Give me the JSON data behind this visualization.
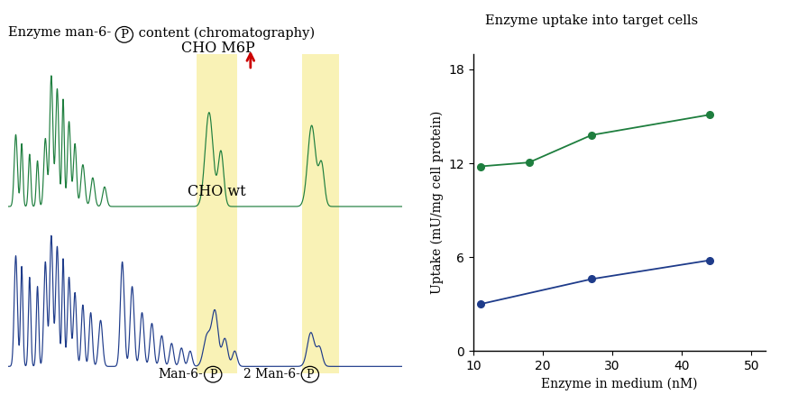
{
  "title_left": "Enzyme man-6-",
  "title_left_p": "P",
  "title_left_rest": " content (chromatography)",
  "title_right": "Enzyme uptake into target cells",
  "left_label_cho_m6p": "CHO M6P",
  "left_label_cho_wt": "CHO wt",
  "bottom_label_1": "Man-6-",
  "bottom_label_1_p": "P",
  "bottom_label_2": "2 Man-6-",
  "bottom_label_2_p": "P",
  "ylabel_right": "Uptake (mU/mg cell protein)",
  "xlabel_right": "Enzyme in medium (nM)",
  "green_color": "#1e7e3e",
  "blue_color": "#1e3b8a",
  "red_color": "#cc0000",
  "highlight_color": "#f5e87a",
  "highlight_alpha": 0.55,
  "green_x": [
    11,
    18,
    27,
    44
  ],
  "green_y": [
    11.8,
    12.05,
    13.8,
    15.1
  ],
  "blue_x": [
    11,
    27,
    44
  ],
  "blue_y": [
    3.0,
    4.6,
    5.8
  ],
  "ylim": [
    0,
    19
  ],
  "yticks": [
    0,
    6,
    12,
    18
  ],
  "xlim": [
    10,
    52
  ],
  "xticks": [
    10,
    20,
    30,
    40,
    50
  ]
}
